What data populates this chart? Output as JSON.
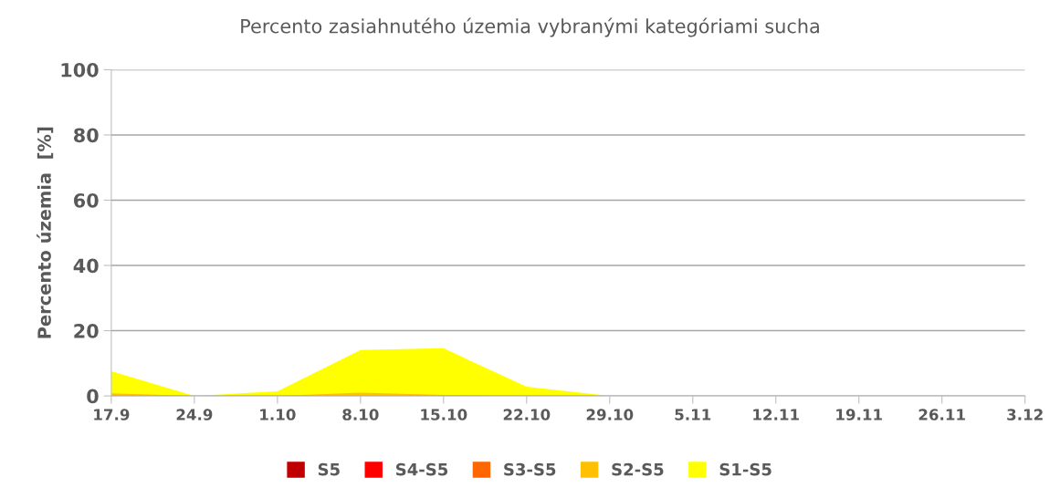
{
  "chart_data": {
    "type": "area",
    "title": "Percento zasiahnutého územia vybranými kategóriami sucha",
    "ylabel": "Percento územia  [%]",
    "categories": [
      "17.9",
      "24.9",
      "1.10",
      "8.10",
      "15.10",
      "22.10",
      "29.10",
      "5.11",
      "12.11",
      "19.11",
      "26.11",
      "3.12"
    ],
    "series": [
      {
        "name": "S5",
        "color": "#c00000",
        "values": [
          null,
          null,
          null,
          null,
          null,
          null,
          null,
          null,
          null,
          null,
          null,
          null
        ]
      },
      {
        "name": "S4-S5",
        "color": "#ff0000",
        "values": [
          null,
          null,
          null,
          null,
          null,
          null,
          null,
          null,
          null,
          null,
          null,
          null
        ]
      },
      {
        "name": "S3-S5",
        "color": "#ff6600",
        "values": [
          null,
          null,
          null,
          null,
          null,
          null,
          null,
          null,
          null,
          null,
          null,
          null
        ]
      },
      {
        "name": "S2-S5",
        "color": "#ffc000",
        "values": [
          0.8,
          0,
          0,
          1.0,
          0.3,
          0,
          0,
          null,
          null,
          null,
          null,
          null
        ]
      },
      {
        "name": "S1-S5",
        "color": "#ffff00",
        "values": [
          7.6,
          0,
          1.4,
          14.1,
          14.6,
          2.8,
          0,
          null,
          null,
          null,
          null,
          null
        ]
      }
    ],
    "ylim": [
      0,
      100
    ],
    "yticks": [
      0,
      20,
      40,
      60,
      80,
      100
    ],
    "grid": "y",
    "legend": "bottom"
  }
}
